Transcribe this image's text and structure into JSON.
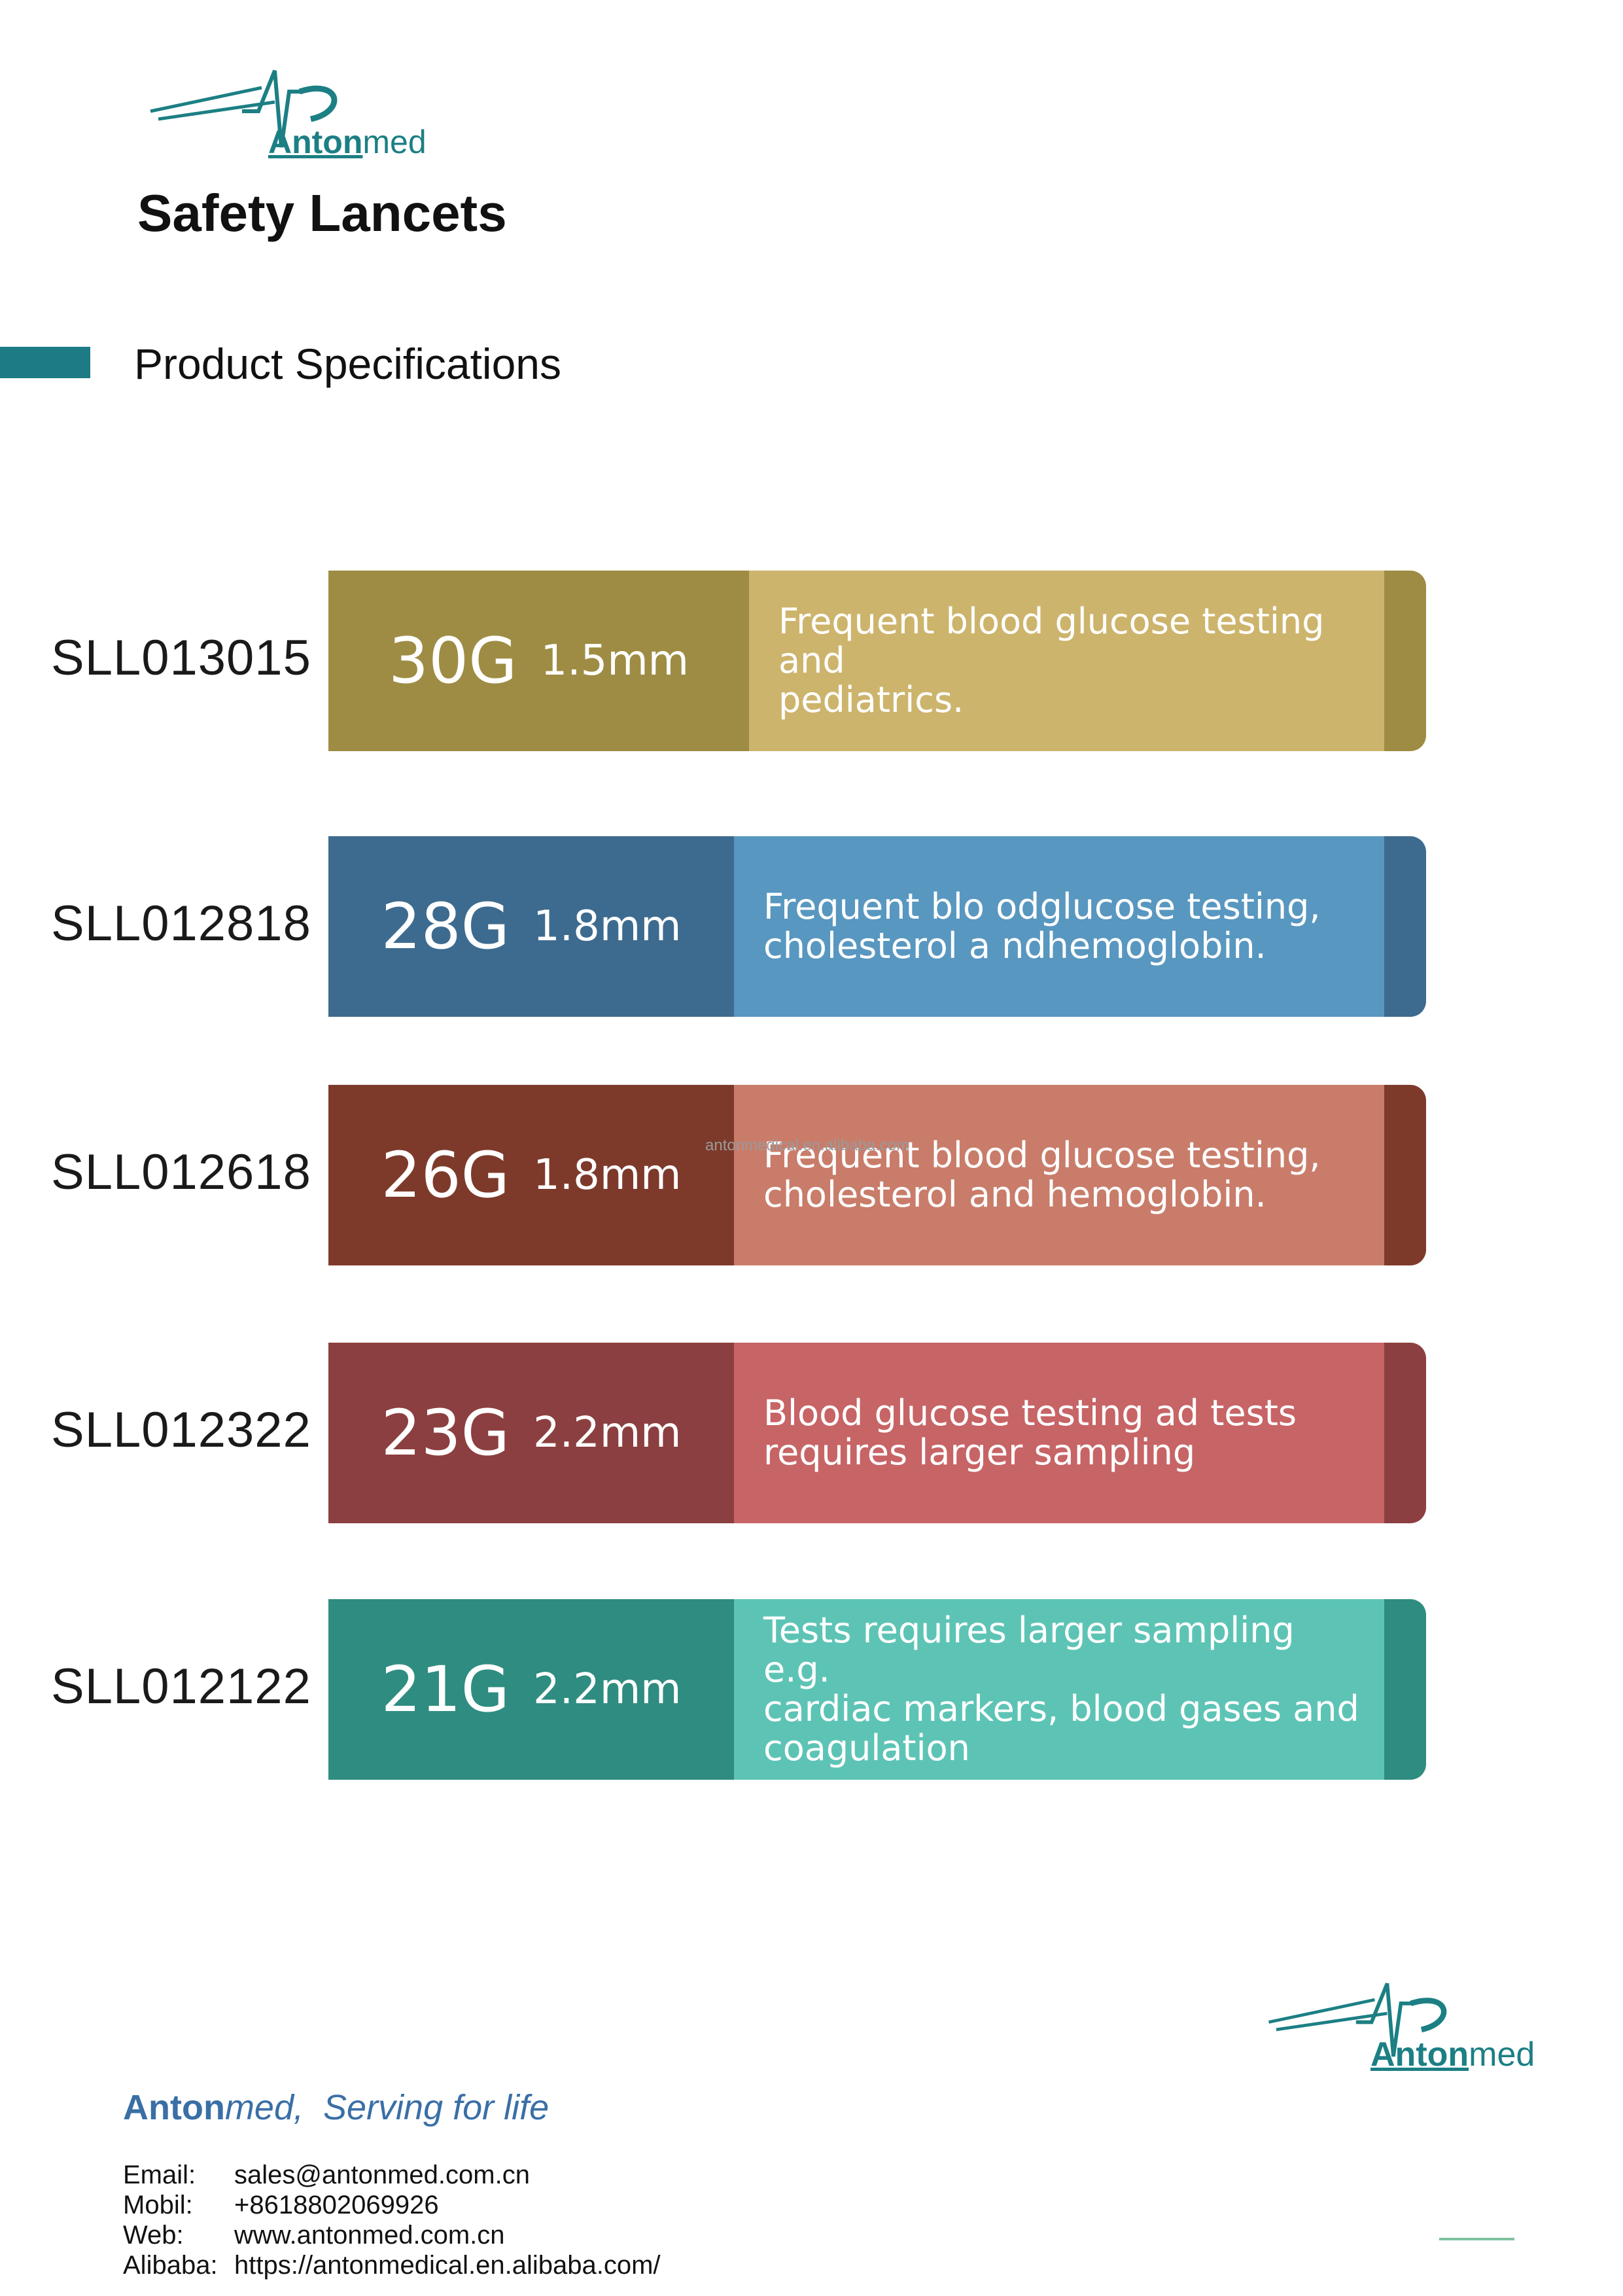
{
  "header": {
    "logo": {
      "brand_bold": "Anton",
      "brand_light": "med"
    },
    "title": "Safety Lancets",
    "section_title": "Product Specifications"
  },
  "colors": {
    "accent": "#1d7b86",
    "logo_teal": "#1c7f84"
  },
  "specs": [
    {
      "code": "SLL013015",
      "gauge": "30G",
      "length": "1.5mm",
      "use_lines": [
        "Frequent blood glucose testing and",
        "pediatrics."
      ],
      "color_dark": "#9e8c44",
      "color_light": "#cdb46c"
    },
    {
      "code": "SLL012818",
      "gauge": "28G",
      "length": "1.8mm",
      "use_lines": [
        "Frequent blo odglucose testing,",
        "cholesterol a ndhemoglobin."
      ],
      "color_dark": "#3d6b8f",
      "color_light": "#5897c0"
    },
    {
      "code": "SLL012618",
      "gauge": "26G",
      "length": "1.8mm",
      "use_lines": [
        "Frequent blood glucose testing,",
        "cholesterol and hemoglobin."
      ],
      "color_dark": "#7d3a2b",
      "color_light": "#c97c6a"
    },
    {
      "code": "SLL012322",
      "gauge": "23G",
      "length": "2.2mm",
      "use_lines": [
        "Blood glucose testing ad tests",
        "requires larger sampling"
      ],
      "color_dark": "#8c3f40",
      "color_light": "#c76466"
    },
    {
      "code": "SLL012122",
      "gauge": "21G",
      "length": "2.2mm",
      "use_lines": [
        "Tests requires larger sampling e.g.",
        "cardiac markers, blood gases and",
        "coagulation"
      ],
      "color_dark": "#2f8c80",
      "color_light": "#5dc4b5"
    }
  ],
  "watermark": "antonmedical.en.alibaba.com",
  "footer": {
    "tagline_brand_bold": "Anton",
    "tagline_brand_light": "med,",
    "tagline_rest": "Serving for life",
    "contacts": [
      {
        "label": "Email:",
        "value": "sales@antonmed.com.cn"
      },
      {
        "label": "Mobil:",
        "value": "+8618802069926"
      },
      {
        "label": "Web:",
        "value": "www.antonmed.com.cn"
      },
      {
        "label": "Alibaba:",
        "value": "https://antonmedical.en.alibaba.com/"
      }
    ]
  }
}
